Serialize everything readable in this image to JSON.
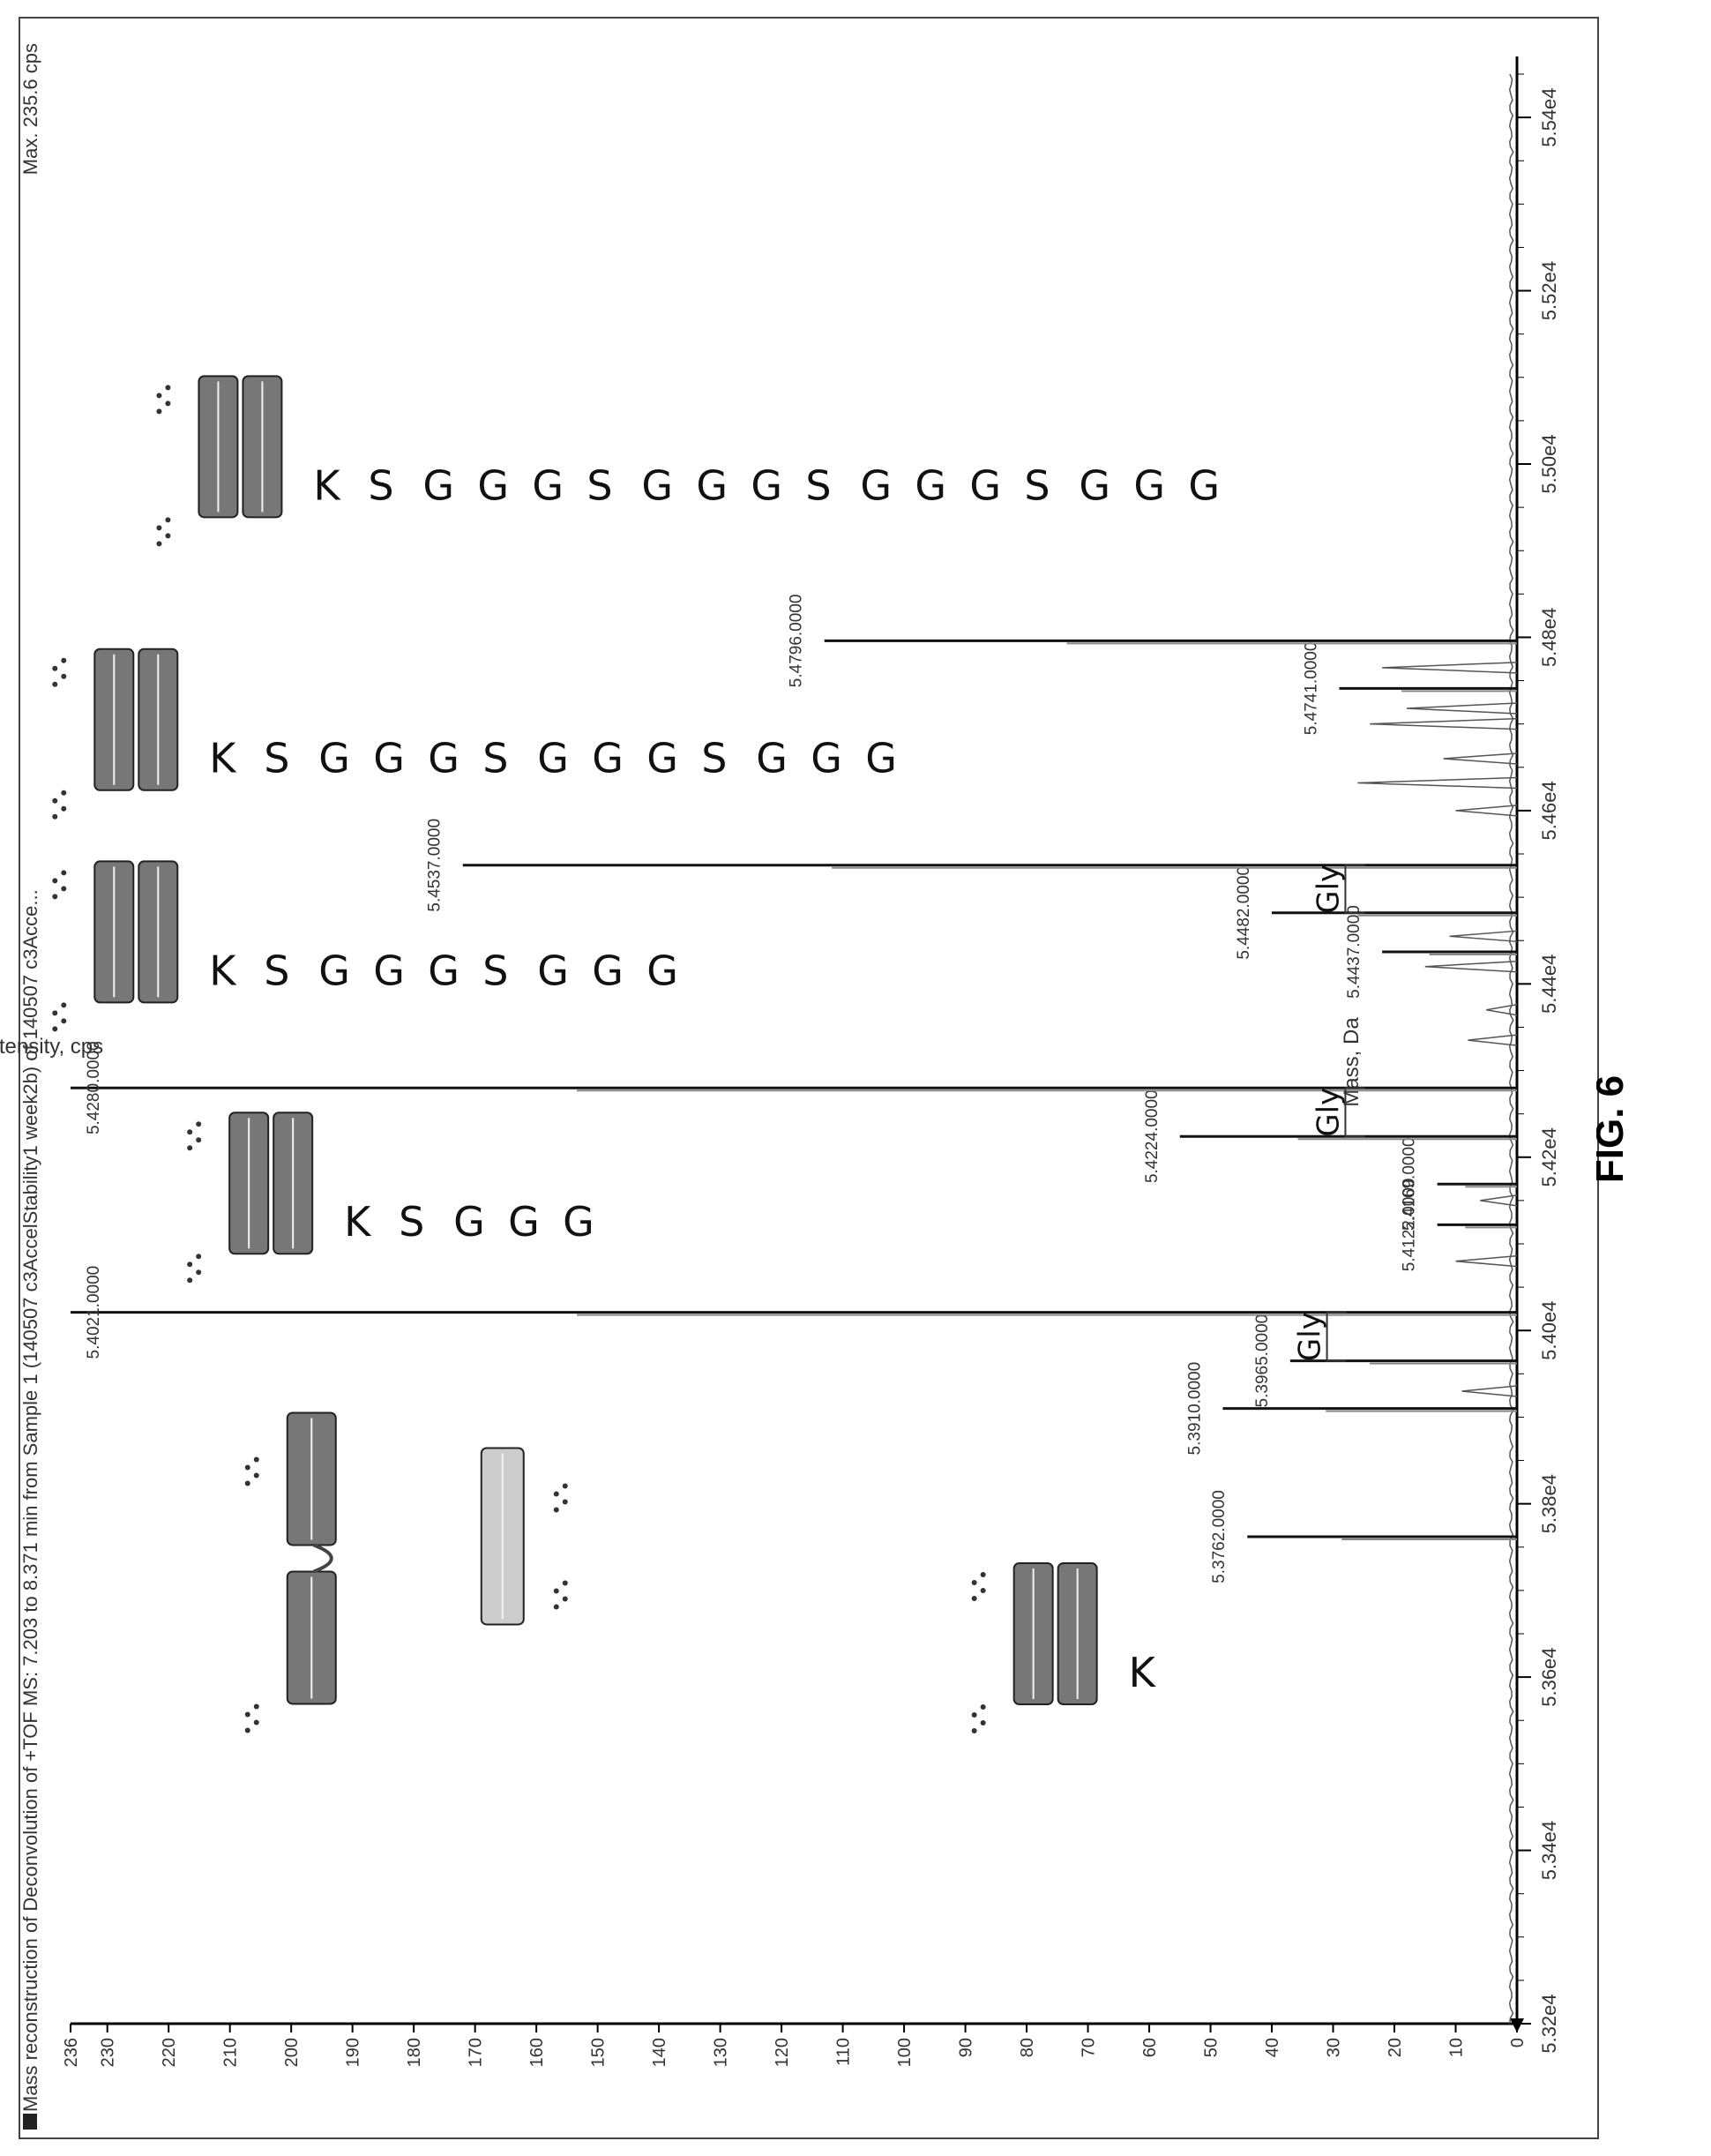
{
  "figure_label": "FIG. 6",
  "chart_data": {
    "type": "line",
    "title": "Mass reconstruction of Deconvolution of +TOF MS: 7.203 to 8.371 min from Sample 1 (140507 c3AccelStability1 week2b) of 140507 c3Acce...",
    "max_label": "Max. 235.6 cps",
    "xlabel": "Mass, Da",
    "ylabel": "Intensity, cps",
    "xlim": [
      53200,
      55450
    ],
    "ylim": [
      0,
      236
    ],
    "x_ticks": [
      {
        "value": 53200,
        "label": "5.32e4"
      },
      {
        "value": 53400,
        "label": "5.34e4"
      },
      {
        "value": 53600,
        "label": "5.36e4"
      },
      {
        "value": 53800,
        "label": "5.38e4"
      },
      {
        "value": 54000,
        "label": "5.40e4"
      },
      {
        "value": 54200,
        "label": "5.42e4"
      },
      {
        "value": 54400,
        "label": "5.44e4"
      },
      {
        "value": 54600,
        "label": "5.46e4"
      },
      {
        "value": 54800,
        "label": "5.48e4"
      },
      {
        "value": 55000,
        "label": "5.50e4"
      },
      {
        "value": 55200,
        "label": "5.52e4"
      },
      {
        "value": 55400,
        "label": "5.54e4"
      }
    ],
    "y_ticks": [
      {
        "value": 0,
        "label": "0"
      },
      {
        "value": 10,
        "label": "10"
      },
      {
        "value": 20,
        "label": "20"
      },
      {
        "value": 30,
        "label": "30"
      },
      {
        "value": 40,
        "label": "40"
      },
      {
        "value": 50,
        "label": "50"
      },
      {
        "value": 60,
        "label": "60"
      },
      {
        "value": 70,
        "label": "70"
      },
      {
        "value": 80,
        "label": "80"
      },
      {
        "value": 90,
        "label": "90"
      },
      {
        "value": 100,
        "label": "100"
      },
      {
        "value": 110,
        "label": "110"
      },
      {
        "value": 120,
        "label": "120"
      },
      {
        "value": 130,
        "label": "130"
      },
      {
        "value": 140,
        "label": "140"
      },
      {
        "value": 150,
        "label": "150"
      },
      {
        "value": 160,
        "label": "160"
      },
      {
        "value": 170,
        "label": "170"
      },
      {
        "value": 180,
        "label": "180"
      },
      {
        "value": 190,
        "label": "190"
      },
      {
        "value": 200,
        "label": "200"
      },
      {
        "value": 210,
        "label": "210"
      },
      {
        "value": 220,
        "label": "220"
      },
      {
        "value": 230,
        "label": "230"
      },
      {
        "value": 236,
        "label": "236"
      }
    ],
    "peaks": [
      {
        "mass": 53762,
        "intensity": 44,
        "label": "5.3762.0000"
      },
      {
        "mass": 53910,
        "intensity": 48,
        "label": "5.3910.0000"
      },
      {
        "mass": 53965,
        "intensity": 37,
        "label": "5.3965.0000"
      },
      {
        "mass": 54021,
        "intensity": 236,
        "label": "5.4021.0000"
      },
      {
        "mass": 54122,
        "intensity": 13,
        "label": "5.4122.0000"
      },
      {
        "mass": 54169,
        "intensity": 13,
        "label": "5.4169.0000"
      },
      {
        "mass": 54224,
        "intensity": 55,
        "label": "5.4224.0000"
      },
      {
        "mass": 54280,
        "intensity": 236,
        "label": "5.4280.0000"
      },
      {
        "mass": 54437,
        "intensity": 22,
        "label": "5.4437.0000"
      },
      {
        "mass": 54482,
        "intensity": 40,
        "label": "5.4482.0000"
      },
      {
        "mass": 54537,
        "intensity": 172,
        "label": "5.4537.0000"
      },
      {
        "mass": 54741,
        "intensity": 29,
        "label": "5.4741.0000"
      },
      {
        "mass": 54796,
        "intensity": 113,
        "label": "5.4796.0000"
      }
    ],
    "minor_peaks": [
      {
        "mass": 53930,
        "intensity": 9
      },
      {
        "mass": 54080,
        "intensity": 10
      },
      {
        "mass": 54150,
        "intensity": 6
      },
      {
        "mass": 54335,
        "intensity": 8
      },
      {
        "mass": 54370,
        "intensity": 5
      },
      {
        "mass": 54420,
        "intensity": 15
      },
      {
        "mass": 54455,
        "intensity": 11
      },
      {
        "mass": 54600,
        "intensity": 10
      },
      {
        "mass": 54632,
        "intensity": 26
      },
      {
        "mass": 54660,
        "intensity": 12
      },
      {
        "mass": 54700,
        "intensity": 24
      },
      {
        "mass": 54718,
        "intensity": 18
      },
      {
        "mass": 54765,
        "intensity": 22
      }
    ],
    "annotations": [
      {
        "text": "Gly",
        "from_mass": 53965,
        "to_mass": 54021,
        "intensity": 31
      },
      {
        "text": "Gly",
        "from_mass": 54224,
        "to_mass": 54280,
        "intensity": 28
      },
      {
        "text": "Gly",
        "from_mass": 54482,
        "to_mass": 54537,
        "intensity": 28
      }
    ],
    "cartoons": [
      {
        "name": "intact-antibody",
        "type": "full",
        "mass": 53620,
        "intensity": 192
      },
      {
        "name": "heavy-chain-k",
        "type": "chain",
        "mass": 53650,
        "intensity": 72,
        "sequence": [
          "K"
        ]
      },
      {
        "name": "heavy-chain-ksggg",
        "type": "chain",
        "mass": 54170,
        "intensity": 200,
        "sequence": [
          "K",
          "S",
          "G",
          "G",
          "G"
        ]
      },
      {
        "name": "heavy-chain-ksgggsggg",
        "type": "chain",
        "mass": 54460,
        "intensity": 222,
        "sequence": [
          "K",
          "S",
          "G",
          "G",
          "G",
          "S",
          "G",
          "G",
          "G"
        ]
      },
      {
        "name": "heavy-chain-ksgggsgggsggg",
        "type": "chain",
        "mass": 54705,
        "intensity": 222,
        "sequence": [
          "K",
          "S",
          "G",
          "G",
          "G",
          "S",
          "G",
          "G",
          "G",
          "S",
          "G",
          "G",
          "G"
        ]
      },
      {
        "name": "heavy-chain-ksgggsgggsgggsggg",
        "type": "chain",
        "mass": 55020,
        "intensity": 205,
        "sequence": [
          "K",
          "S",
          "G",
          "G",
          "G",
          "S",
          "G",
          "G",
          "G",
          "S",
          "G",
          "G",
          "G",
          "S",
          "G",
          "G",
          "G"
        ]
      }
    ]
  }
}
